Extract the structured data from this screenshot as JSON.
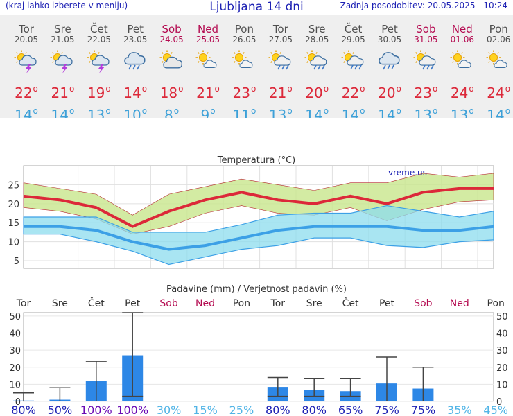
{
  "header": {
    "menu_hint": "(kraj lahko izberete v meniju)",
    "title": "Ljubljana 14 dni",
    "updated": "Zadnja posodobitev: 20.05.2025 - 10:24"
  },
  "days": [
    {
      "name": "Tor",
      "date": "20.05",
      "weekend": false,
      "icon": "sun-cloud-thunder-icon",
      "tmax": "22",
      "tmin": "14"
    },
    {
      "name": "Sre",
      "date": "21.05",
      "weekend": false,
      "icon": "sun-cloud-thunder-icon",
      "tmax": "21",
      "tmin": "14"
    },
    {
      "name": "Čet",
      "date": "22.05",
      "weekend": false,
      "icon": "sun-cloud-thunder-icon",
      "tmax": "19",
      "tmin": "13"
    },
    {
      "name": "Pet",
      "date": "23.05",
      "weekend": false,
      "icon": "cloud-rain-icon",
      "tmax": "14",
      "tmin": "10"
    },
    {
      "name": "Sob",
      "date": "24.05",
      "weekend": true,
      "icon": "sun-cloud-icon",
      "tmax": "18",
      "tmin": "8"
    },
    {
      "name": "Ned",
      "date": "25.05",
      "weekend": true,
      "icon": "sun-small-cloud-icon",
      "tmax": "21",
      "tmin": "9"
    },
    {
      "name": "Pon",
      "date": "26.05",
      "weekend": false,
      "icon": "sun-small-cloud-icon",
      "tmax": "23",
      "tmin": "11"
    },
    {
      "name": "Tor",
      "date": "27.05",
      "weekend": false,
      "icon": "sun-cloud-rain-icon",
      "tmax": "21",
      "tmin": "13"
    },
    {
      "name": "Sre",
      "date": "28.05",
      "weekend": false,
      "icon": "sun-cloud-rain-icon",
      "tmax": "20",
      "tmin": "14"
    },
    {
      "name": "Čet",
      "date": "29.05",
      "weekend": false,
      "icon": "sun-cloud-rain-icon",
      "tmax": "22",
      "tmin": "14"
    },
    {
      "name": "Pet",
      "date": "30.05",
      "weekend": false,
      "icon": "cloud-rain-icon",
      "tmax": "20",
      "tmin": "14"
    },
    {
      "name": "Sob",
      "date": "31.05",
      "weekend": true,
      "icon": "sun-cloud-rain-icon",
      "tmax": "23",
      "tmin": "13"
    },
    {
      "name": "Ned",
      "date": "01.06",
      "weekend": true,
      "icon": "sun-small-cloud-icon",
      "tmax": "24",
      "tmin": "13"
    },
    {
      "name": "Pon",
      "date": "02.06",
      "weekend": false,
      "icon": "sun-small-cloud-icon",
      "tmax": "24",
      "tmin": "14"
    }
  ],
  "colors": {
    "weekday": "#505050",
    "weekend": "#b40a50",
    "tmax": "#dc2839",
    "tmin": "#3ca0d8",
    "maxband": "#c8e68c",
    "minband": "#8cdced",
    "minline": "#3ca0e6",
    "bar": "#2d87e6",
    "prob_high": "#6a0ab4",
    "prob_mid": "#1e22b4",
    "prob_low": "#50b4e6"
  },
  "chart_data": [
    {
      "type": "line",
      "title": "Temperatura (°C)",
      "watermark": "vreme.us",
      "x": [
        "Tor",
        "Sre",
        "Čet",
        "Pet",
        "Sob",
        "Ned",
        "Pon",
        "Tor",
        "Sre",
        "Čet",
        "Pet",
        "Sob",
        "Ned",
        "Pon"
      ],
      "ylim": [
        3,
        30
      ],
      "yticks": [
        5,
        10,
        15,
        20,
        25
      ],
      "grid": true,
      "series": [
        {
          "name": "Tmax",
          "values": [
            22,
            21,
            19,
            14,
            18,
            21,
            23,
            21,
            20,
            22,
            20,
            23,
            24,
            24
          ]
        },
        {
          "name": "Tmax range high",
          "values": [
            25.5,
            24,
            22.5,
            17,
            22.5,
            24.5,
            26.5,
            25,
            23.5,
            25.5,
            25.5,
            28,
            27,
            28
          ]
        },
        {
          "name": "Tmax range low",
          "values": [
            19,
            18,
            16,
            12,
            14,
            17.5,
            19.5,
            17.5,
            17,
            19,
            15.5,
            18.5,
            20.5,
            21
          ]
        },
        {
          "name": "Tmin",
          "values": [
            14,
            14,
            13,
            10,
            8,
            9,
            11,
            13,
            14,
            14,
            14,
            13,
            13,
            14
          ]
        },
        {
          "name": "Tmin range high",
          "values": [
            16.5,
            16.5,
            16.5,
            12.5,
            12.5,
            12.5,
            14.5,
            17,
            17.5,
            17.5,
            19.5,
            18,
            16.5,
            18
          ]
        },
        {
          "name": "Tmin range low",
          "values": [
            12,
            12,
            10,
            7.5,
            4,
            6,
            8,
            9,
            11,
            11,
            9,
            8.5,
            10,
            10.5
          ]
        }
      ]
    },
    {
      "type": "bar",
      "title": "Padavine (mm) / Verjetnost padavin (%)",
      "categories": [
        "Tor",
        "Sre",
        "Čet",
        "Pet",
        "Sob",
        "Ned",
        "Pon",
        "Tor",
        "Sre",
        "Čet",
        "Pet",
        "Sob",
        "Ned",
        "Pon"
      ],
      "weekend": [
        false,
        false,
        false,
        false,
        true,
        true,
        false,
        false,
        false,
        false,
        false,
        true,
        true,
        false
      ],
      "values": [
        0.5,
        1,
        12,
        27,
        0,
        0,
        0,
        8.5,
        6.5,
        6,
        10.5,
        7.5,
        0,
        0
      ],
      "error_low": [
        0,
        0,
        0,
        3,
        null,
        null,
        null,
        3,
        3,
        3,
        0,
        0,
        null,
        null
      ],
      "error_high": [
        5,
        8,
        23.5,
        52,
        null,
        null,
        null,
        14,
        13.5,
        13.5,
        26,
        20,
        null,
        null
      ],
      "probability": [
        "80%",
        "50%",
        "100%",
        "100%",
        "30%",
        "15%",
        "25%",
        "80%",
        "80%",
        "65%",
        "75%",
        "75%",
        "35%",
        "45%"
      ],
      "ylim": [
        0,
        52
      ],
      "yticks": [
        0,
        10,
        20,
        30,
        40,
        50
      ]
    }
  ]
}
